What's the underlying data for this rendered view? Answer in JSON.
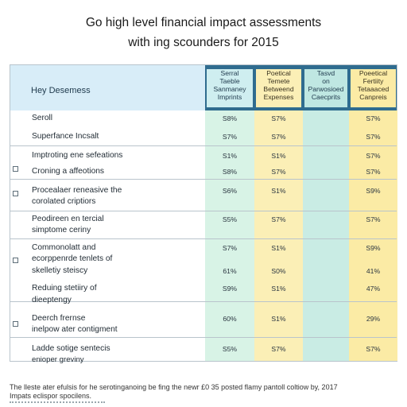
{
  "title": {
    "line1": "Go high level financial impact assessments",
    "line2": "with ing scounders for 2015"
  },
  "table": {
    "corner_label": "Hey Desemess",
    "columns": [
      {
        "line1": "Serral",
        "line2": "Taeble",
        "line3": "Sanmaney",
        "line4": "Imprints"
      },
      {
        "line1": "Poetical",
        "line2": "Temete",
        "line3": "Betweend",
        "line4": "Expenses"
      },
      {
        "line1": "Tasvd",
        "line2": "on",
        "line3": "Parwosioed",
        "line4": "Caecprits"
      },
      {
        "line1": "Poeetical",
        "line2": "Fertiity",
        "line3": "Tetaaaced",
        "line4": "Canpreis"
      }
    ],
    "rows": [
      {
        "label": "Seroll",
        "c1": "S8%",
        "c2": "S7%",
        "c4": "S7%"
      },
      {
        "label": "Superfance Incsalt",
        "c1": "S7%",
        "c2": "S7%",
        "c4": "S7%"
      },
      {
        "label": "Imptroting ene sefeations",
        "c1": "S1%",
        "c2": "S1%",
        "c4": "S7%"
      },
      {
        "label": "Croning a affeotions",
        "c1": "S8%",
        "c2": "S7%",
        "c4": "S7%"
      },
      {
        "label": "Procealaer reneasive the",
        "label2": "corolated criptiors",
        "c1": "S6%",
        "c2": "S1%",
        "c4": "S9%"
      },
      {
        "label": "Peodireen en tercial",
        "label2": "simptome ceriny",
        "c1": "S5%",
        "c2": "S7%",
        "c4": "S7%"
      },
      {
        "label": "Commonolatt and",
        "label2": "ecorppenrde tenlets of",
        "c1": "S7%",
        "c2": "S1%",
        "c4": "S9%"
      },
      {
        "label": "skelletiy steiscy",
        "c1": "61%",
        "c2": "S0%",
        "c4": "41%"
      },
      {
        "label": "Reduing stetiiry of",
        "label2": "dieeptengy",
        "c1": "S9%",
        "c2": "S1%",
        "c4": "47%"
      },
      {
        "label": "Deerch frernse",
        "label2": "inelpow ater contigment",
        "c1": "60%",
        "c2": "S1%",
        "c4": "29%"
      },
      {
        "label": "Ladde sotige sentecis",
        "label2": "enioper greviny",
        "c1": "S5%",
        "c2": "S7%",
        "c4": "S7%"
      }
    ]
  },
  "footnote": {
    "line1": "The lleste ater efulsis for he serotinganoing be fing the newr £0 35 posted flamy pantoll coltiow by, 2017",
    "line2": "Impats eclispor spocilens."
  }
}
